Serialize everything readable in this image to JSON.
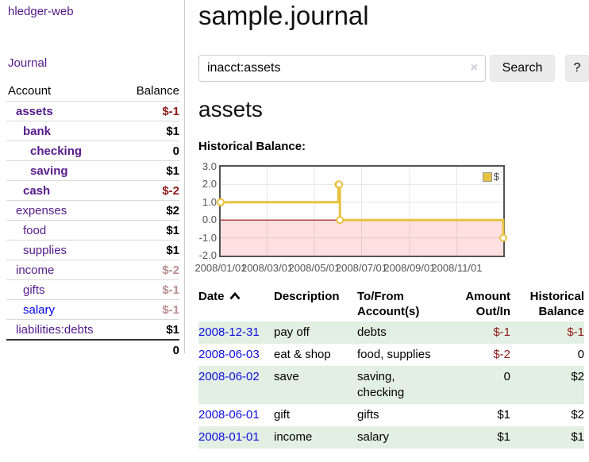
{
  "app": {
    "title": "hledger-web"
  },
  "sidebar": {
    "journal_link": "Journal",
    "accounts": {
      "header_account": "Account",
      "header_balance": "Balance",
      "rows": [
        {
          "name": "assets",
          "indent": 1,
          "bold": true,
          "link": "purple",
          "balance": "$-1",
          "balance_class": "neg-strong"
        },
        {
          "name": "bank",
          "indent": 2,
          "bold": true,
          "link": "purple",
          "balance": "$1",
          "balance_class": ""
        },
        {
          "name": "checking",
          "indent": 3,
          "bold": true,
          "link": "purple",
          "balance": "0",
          "balance_class": ""
        },
        {
          "name": "saving",
          "indent": 3,
          "bold": true,
          "link": "purple",
          "balance": "$1",
          "balance_class": ""
        },
        {
          "name": "cash",
          "indent": 2,
          "bold": true,
          "link": "purple",
          "balance": "$-2",
          "balance_class": "neg-strong"
        },
        {
          "name": "expenses",
          "indent": 1,
          "bold": false,
          "link": "purple",
          "balance": "$2",
          "balance_class": ""
        },
        {
          "name": "food",
          "indent": 2,
          "bold": false,
          "link": "purple",
          "balance": "$1",
          "balance_class": ""
        },
        {
          "name": "supplies",
          "indent": 2,
          "bold": false,
          "link": "purple",
          "balance": "$1",
          "balance_class": ""
        },
        {
          "name": "income",
          "indent": 1,
          "bold": false,
          "link": "purple",
          "balance": "$-2",
          "balance_class": "neg-soft"
        },
        {
          "name": "gifts",
          "indent": 2,
          "bold": false,
          "link": "purple",
          "balance": "$-1",
          "balance_class": "neg-soft"
        },
        {
          "name": "salary",
          "indent": 2,
          "bold": false,
          "link": "blue",
          "balance": "$-1",
          "balance_class": "neg-soft"
        },
        {
          "name": "liabilities:debts",
          "indent": 1,
          "bold": false,
          "link": "purple",
          "balance": "$1",
          "balance_class": ""
        }
      ],
      "total": "0"
    }
  },
  "main": {
    "title": "sample.journal",
    "search": {
      "value": "inacct:assets",
      "clear_icon": "×",
      "button_label": "Search",
      "help_label": "?"
    },
    "account_heading": "assets"
  },
  "chart_data": {
    "type": "line",
    "title": "Historical Balance:",
    "legend": {
      "label": "$",
      "position": "top-right"
    },
    "series": [
      {
        "name": "$",
        "color": "#e8c240",
        "step": true,
        "points": [
          [
            "2008-01-01",
            1
          ],
          [
            "2008-06-01",
            2
          ],
          [
            "2008-06-02",
            2
          ],
          [
            "2008-06-03",
            0
          ],
          [
            "2008-12-31",
            -1
          ]
        ]
      }
    ],
    "ylim": [
      -2,
      3
    ],
    "xmin": "2008-01-01",
    "xmax": "2008-12-31",
    "x_days": 365,
    "grid": true,
    "yticks": [
      {
        "v": 3,
        "label": "3.0",
        "grid": false
      },
      {
        "v": 2,
        "label": "2.0",
        "grid": true
      },
      {
        "v": 1,
        "label": "1.0",
        "grid": true
      },
      {
        "v": 0,
        "label": "0.0",
        "grid": true
      },
      {
        "v": -1,
        "label": "-1.0",
        "grid": true
      },
      {
        "v": -2,
        "label": "-2.0",
        "grid": false
      }
    ],
    "xticks": [
      {
        "date": "2008-01-01",
        "label": "2008/01/01",
        "grid": false
      },
      {
        "date": "2008-03-01",
        "label": "2008/03/01",
        "grid": true
      },
      {
        "date": "2008-05-01",
        "label": "2008/05/01",
        "grid": true
      },
      {
        "date": "2008-07-01",
        "label": "2008/07/01",
        "grid": true
      },
      {
        "date": "2008-09-01",
        "label": "2008/09/01",
        "grid": true
      },
      {
        "date": "2008-11-01",
        "label": "2008/11/01",
        "grid": true
      }
    ],
    "colors": {
      "grid": "#e6e6e6",
      "border": "#545454",
      "negative_region": "rgba(255,0,0,0.12)",
      "zero_line": "#a01010",
      "marker_fill": "#ffffff"
    }
  },
  "register": {
    "headers": {
      "date": "Date",
      "description": "Description",
      "account_line1": "To/From",
      "account_line2": "Account(s)",
      "amount_line1": "Amount",
      "amount_line2": "Out/In",
      "balance_line1": "Historical",
      "balance_line2": "Balance"
    },
    "rows": [
      {
        "date": "2008-12-31",
        "description": "pay off",
        "accounts": "debts",
        "amount": "$-1",
        "amount_negative": true,
        "balance": "$-1",
        "balance_negative": true
      },
      {
        "date": "2008-06-03",
        "description": "eat & shop",
        "accounts": "food, supplies",
        "amount": "$-2",
        "amount_negative": true,
        "balance": "0",
        "balance_negative": false
      },
      {
        "date": "2008-06-02",
        "description": "save",
        "accounts": "saving, checking",
        "amount": "0",
        "amount_negative": false,
        "balance": "$2",
        "balance_negative": false
      },
      {
        "date": "2008-06-01",
        "description": "gift",
        "accounts": "gifts",
        "amount": "$1",
        "amount_negative": false,
        "balance": "$2",
        "balance_negative": false
      },
      {
        "date": "2008-01-01",
        "description": "income",
        "accounts": "salary",
        "amount": "$1",
        "amount_negative": false,
        "balance": "$1",
        "balance_negative": false
      }
    ]
  },
  "colors": {
    "link_purple": "#551a8b",
    "link_blue": "#0000ee",
    "negative_strong": "#8f1a1a",
    "negative_soft": "#bc8f8f",
    "row_stripe_green": "#e2efe2",
    "series_gold": "#e8c240"
  }
}
